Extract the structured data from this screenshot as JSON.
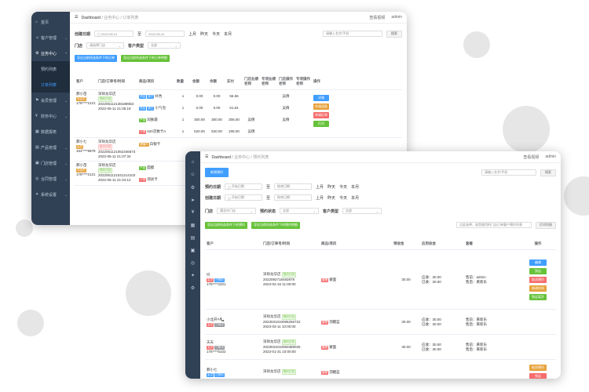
{
  "back": {
    "sidebar": [
      {
        "icon": "⌂",
        "label": "首页"
      },
      {
        "icon": "☺",
        "label": "客户管理",
        "arrow": "⌄"
      },
      {
        "icon": "⚙",
        "label": "业务中心",
        "arrow": "⌃",
        "on": true
      },
      {
        "icon": "",
        "label": "预约列表",
        "sub": true
      },
      {
        "icon": "",
        "label": "订单列表",
        "sub": true,
        "sel": true
      },
      {
        "icon": "⚑",
        "label": "会员管理",
        "arrow": "⌄"
      },
      {
        "icon": "¥",
        "label": "财务中心",
        "arrow": "⌄"
      },
      {
        "icon": "▦",
        "label": "数据报表"
      },
      {
        "icon": "▤",
        "label": "产品管理",
        "arrow": "⌄"
      },
      {
        "icon": "▣",
        "label": "门店管理",
        "arrow": "⌄"
      },
      {
        "icon": "◎",
        "label": "合同管理",
        "arrow": "⌄"
      },
      {
        "icon": "✦",
        "label": "系统设置",
        "arrow": "⌄"
      }
    ],
    "breadcrumb": [
      "Dashboard",
      "业务中心",
      "订单列表"
    ],
    "top_right": [
      "查看视频",
      "admin"
    ],
    "filter": {
      "date_label": "创建日期",
      "date_from": "2022-05-01",
      "date_to": "2022-05-31",
      "sep": "至",
      "quick": [
        "上月",
        "昨天",
        "今天",
        "本月"
      ],
      "store_label": "门店",
      "store_value": "请选择门店",
      "type_label": "客户类型",
      "type_value": "全部",
      "search_placeholder": "请输入名字/手机",
      "search_btn": "搜索"
    },
    "actions": [
      "导出当前所选条件下的订单",
      "导出当前所选条件下的订单明细"
    ],
    "columns": [
      "客户",
      "门店/订单号/时间",
      "商品/项目",
      "数量",
      "金额",
      "余额",
      "实付",
      "门店业绩老师",
      "专项业绩老师",
      "门店操作老师",
      "专项操作老师",
      "操作"
    ],
    "orders": [
      {
        "name": "郝小苗",
        "tag": "非会员",
        "phone": "178****2121",
        "store": "深圳龙华店",
        "status": "预约已扣",
        "order_no": "2022051121381889D2",
        "time": "2022-05-11 21:05:19",
        "items": [
          {
            "tag": "项目",
            "tag2": "其它",
            "name": "补色",
            "qty": "1",
            "amount": "0.00",
            "balance": "0.00",
            "paid": "56.56",
            "t1": "",
            "t2": "",
            "t3": "吴倩",
            "t4": ""
          },
          {
            "tag": "项目",
            "tag2": "其它",
            "name": "小气泡",
            "qty": "1",
            "amount": "0.00",
            "balance": "0.00",
            "paid": "51.64",
            "t1": "",
            "t2": "",
            "t3": "吴倩",
            "t4": ""
          },
          {
            "tag": "产品",
            "tag2": "",
            "name": "润肤霜",
            "qty": "1",
            "amount": "300.00",
            "balance": "300.00",
            "paid": "306.00",
            "t1": "吴倩",
            "t2": "",
            "t3": "吴倩",
            "t4": ""
          },
          {
            "tag": "卡项",
            "tag2": "",
            "name": "520次数卡A",
            "qty": "1",
            "amount": "520.00",
            "balance": "520.00",
            "paid": "208.00",
            "t1": "吴倩",
            "t2": "",
            "t3": "",
            "t4": ""
          }
        ],
        "ops": [
          "详情",
          "申请退款",
          "申请反审",
          "打印"
        ]
      },
      {
        "name": "郝小七",
        "tag": "会员",
        "phone": "154****9878",
        "store": "深圳龙华店",
        "status": "部分已扣",
        "order_no": "2022051121062346673",
        "time": "2022-05-11 21:07:34",
        "items": [
          {
            "tag": "储值卡",
            "tag2": "",
            "name": "白银卡",
            "qty": "",
            "amount": "",
            "balance": "",
            "paid": "",
            "t1": "",
            "t2": "",
            "t3": "",
            "t4": ""
          }
        ],
        "ops": []
      },
      {
        "name": "郝小苗",
        "tag": "非会员",
        "phone": "178****2121",
        "store": "深圳龙华店",
        "status": "预约已扣",
        "order_no": "2022051121041214103",
        "time": "2022-05-11 21:04:12",
        "items": [
          {
            "tag": "产品",
            "tag2": "",
            "name": "面膜",
            "qty": "",
            "amount": "",
            "balance": "",
            "paid": "",
            "t1": "",
            "t2": "",
            "t3": "",
            "t4": ""
          },
          {
            "tag": "卡项",
            "tag2": "",
            "name": "测试卡",
            "qty": "",
            "amount": "",
            "balance": "",
            "paid": "",
            "t1": "",
            "t2": "",
            "t3": "",
            "t4": ""
          }
        ],
        "ops": []
      }
    ]
  },
  "front": {
    "icons": [
      "⌂",
      "☺",
      "⚙",
      "➤",
      "¥",
      "▦",
      "▤",
      "▣",
      "◎",
      "✦",
      "⚙"
    ],
    "breadcrumb": [
      "Dashboard",
      "业务中心",
      "预约列表"
    ],
    "top_right": [
      "查看视频",
      "admin"
    ],
    "new_btn": "新增预约",
    "search_placeholder": "请输入名字/手机",
    "search_btn": "搜索",
    "filter": {
      "appt_label": "预约日期",
      "create_label": "创建日期",
      "date_from": "开始日期",
      "date_to": "结束日期",
      "sep": "至",
      "quick": [
        "上月",
        "昨天",
        "今天",
        "本月"
      ],
      "store_label": "门店",
      "store_value": "通北市门店",
      "status_label": "预约状态",
      "status_value": "全部",
      "type_label": "客户类型",
      "type_value": "全部"
    },
    "actions": [
      "导出当前所选条件下的预约",
      "导出当前所选条件下的预约明细"
    ],
    "export_hint": "点此选择，若您使用的门店订单客户预约列表",
    "export_btn": "打印列表",
    "columns": [
      "客户",
      "门店/订单号/时间",
      "商品/项目",
      "预收金",
      "应用收金",
      "套餐",
      "操作"
    ],
    "rows": [
      {
        "name": "忏",
        "tags": [
          [
            "会员",
            "t-red"
          ],
          [
            "已预约",
            "t-blue"
          ]
        ],
        "phone": "175****2201",
        "store": "深圳龙华店",
        "status": "预约已扣",
        "order_no": "2022092718492878",
        "time": "2023-02-16 11:00:00",
        "item_tag": "套餐",
        "item": "蒙面",
        "prepay": "30.00",
        "applied": [
          "应收：30.00",
          "已收：30.00"
        ],
        "pkg": [
          "售前：admin",
          "售后：黄新乐"
        ],
        "ops": [
          [
            "编辑",
            "b-blue"
          ],
          [
            "到店",
            "b-green"
          ],
          [
            "取消预约",
            "b-red"
          ],
          [
            "修改时间",
            "b-orange"
          ],
          [
            "到店离开",
            "b-green"
          ]
        ]
      },
      {
        "name": "小北开✎📞",
        "tags": [
          [
            "会员",
            "t-red"
          ],
          [
            "已到店",
            "t-gray"
          ]
        ],
        "phone": "",
        "store": "深圳龙华店",
        "status": "预约已扣",
        "order_no": "2023031010095256722",
        "time": "2023-03-11 10:00:00",
        "item_tag": "套餐",
        "item": "羽睫蓝",
        "prepay": "30.00",
        "applied": [
          "应收：30.00",
          "已收：30.00"
        ],
        "pkg": [
          "售前：黄新乐",
          "售后：黄新乐"
        ],
        "ops": []
      },
      {
        "name": "天天",
        "tags": [
          [
            "会员",
            "t-red"
          ],
          [
            "已取消",
            "t-gray"
          ]
        ],
        "phone": "176****5102",
        "store": "深圳龙华店",
        "status": "预约已扣",
        "order_no": "2023031010050389026",
        "time": "2023-01-31 10:00:00",
        "item_tag": "套餐",
        "item": "蒙面",
        "prepay": "30.00",
        "applied": [
          "应收：30.00",
          "已收：30.00"
        ],
        "pkg": [
          "售前：黄新乐",
          "售后：黄新乐"
        ],
        "ops": []
      },
      {
        "name": "郝小七",
        "tags": [
          [
            "会员",
            "t-blue"
          ],
          [
            "已预约",
            "t-blue"
          ]
        ],
        "phone": "",
        "store": "深圳龙华店",
        "status": "预约已扣",
        "order_no": "",
        "time": "",
        "item_tag": "套餐",
        "item": "羽睫蓝",
        "prepay": "",
        "applied": [],
        "pkg": [],
        "ops": [
          [
            "取消预约",
            "b-orange"
          ],
          [
            "到店",
            "b-red"
          ]
        ]
      }
    ]
  }
}
